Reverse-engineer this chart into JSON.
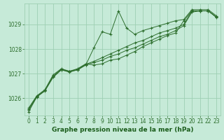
{
  "bg_color": "#c6ead8",
  "grid_color": "#9ecfb4",
  "line_color": "#2d6e2d",
  "marker_color": "#2d6e2d",
  "xlabel": "Graphe pression niveau de la mer (hPa)",
  "xlabel_color": "#1a5c1a",
  "ylim": [
    1025.3,
    1029.85
  ],
  "xlim": [
    -0.5,
    23.5
  ],
  "yticks": [
    1026,
    1027,
    1028,
    1029
  ],
  "xticks": [
    0,
    1,
    2,
    3,
    4,
    5,
    6,
    7,
    8,
    9,
    10,
    11,
    12,
    13,
    14,
    15,
    16,
    17,
    18,
    19,
    20,
    21,
    22,
    23
  ],
  "series": [
    [
      1025.45,
      1026.05,
      1026.3,
      1026.85,
      1027.15,
      1027.1,
      1027.15,
      1027.35,
      1028.05,
      1028.7,
      1028.6,
      1029.55,
      1028.85,
      1028.6,
      1028.75,
      1028.85,
      1028.95,
      1029.05,
      1029.15,
      1029.2,
      1029.6,
      1029.6,
      1029.6,
      1029.35
    ],
    [
      1025.6,
      1026.1,
      1026.35,
      1026.95,
      1027.2,
      1027.1,
      1027.2,
      1027.4,
      1027.35,
      1027.4,
      1027.55,
      1027.6,
      1027.75,
      1027.9,
      1028.1,
      1028.25,
      1028.4,
      1028.55,
      1028.65,
      1029.15,
      1029.55,
      1029.55,
      1029.55,
      1029.3
    ],
    [
      1025.55,
      1026.08,
      1026.32,
      1026.9,
      1027.18,
      1027.08,
      1027.18,
      1027.38,
      1027.5,
      1027.65,
      1027.8,
      1027.95,
      1028.1,
      1028.25,
      1028.35,
      1028.5,
      1028.65,
      1028.75,
      1028.85,
      1029.0,
      1029.55,
      1029.55,
      1029.55,
      1029.3
    ],
    [
      1025.52,
      1026.06,
      1026.31,
      1026.88,
      1027.16,
      1027.06,
      1027.16,
      1027.36,
      1027.45,
      1027.55,
      1027.7,
      1027.8,
      1027.95,
      1028.05,
      1028.2,
      1028.35,
      1028.5,
      1028.6,
      1028.75,
      1028.95,
      1029.5,
      1029.55,
      1029.55,
      1029.28
    ]
  ],
  "tick_fontsize": 5.5,
  "xlabel_fontsize": 6.5
}
